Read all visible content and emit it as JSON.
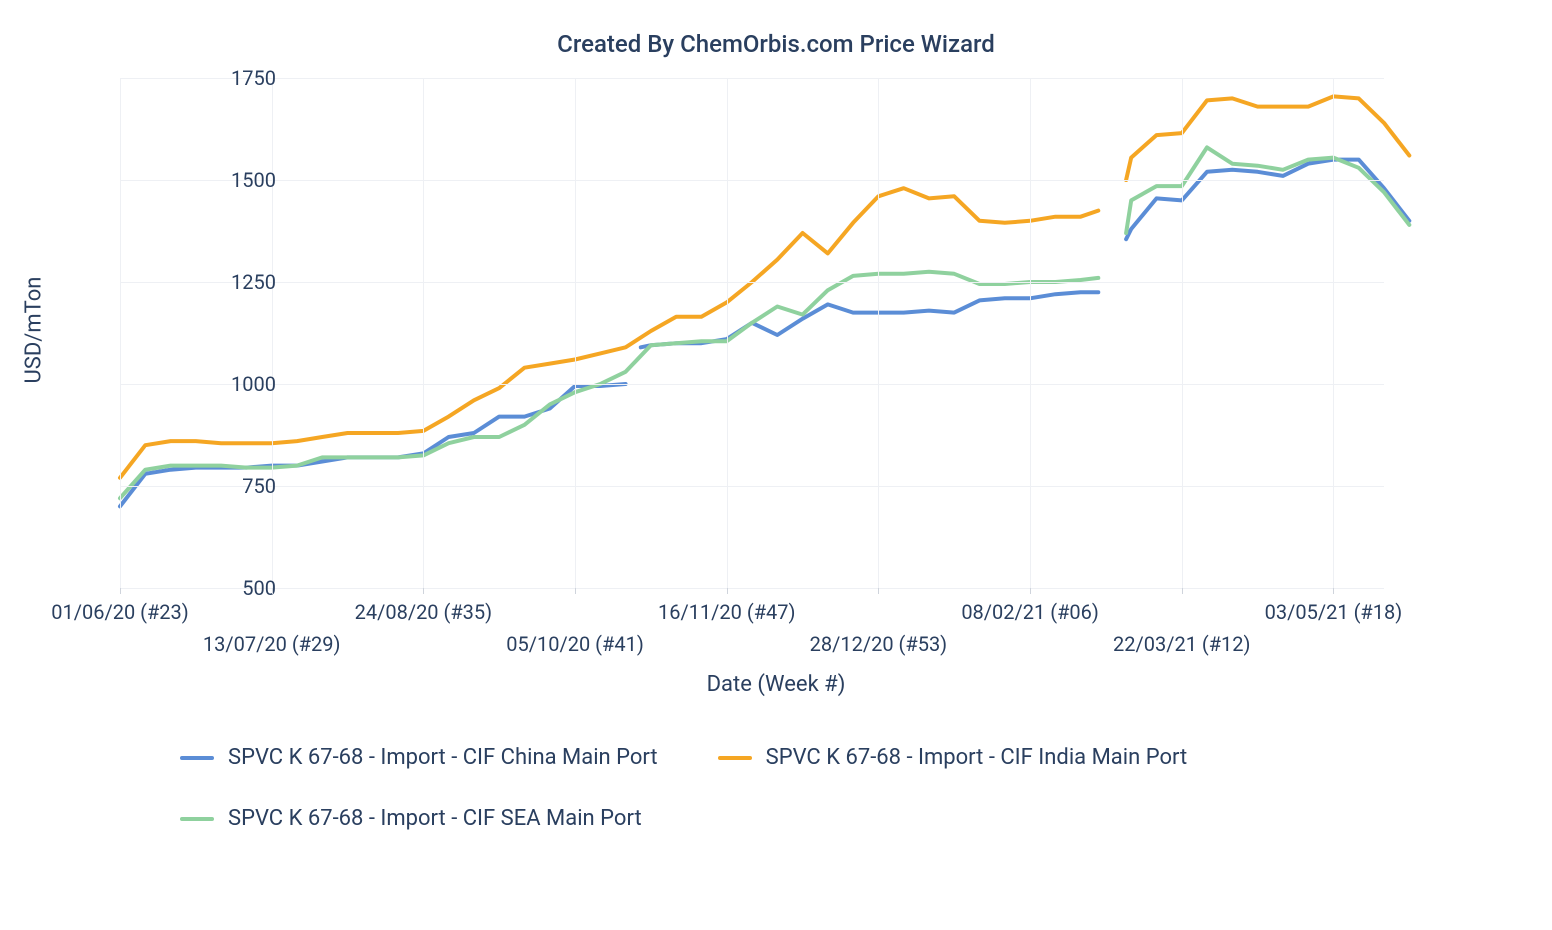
{
  "chart": {
    "type": "line",
    "title": "Created By ChemOrbis.com Price Wizard",
    "title_fontsize": 24,
    "background_color": "#ffffff",
    "grid_color": "#eef0f4",
    "text_color": "#2a3f5f",
    "y_axis": {
      "label": "USD/mTon",
      "min": 500,
      "max": 1750,
      "tick_step": 250,
      "ticks": [
        500,
        750,
        1000,
        1250,
        1500,
        1750
      ],
      "label_fontsize": 22,
      "tick_fontsize": 20
    },
    "x_axis": {
      "label": "Date (Week #)",
      "index_min": 0,
      "index_max": 50,
      "ticks": [
        {
          "i": 0,
          "label": "01/06/20 (#23)",
          "row": 0
        },
        {
          "i": 6,
          "label": "13/07/20 (#29)",
          "row": 1
        },
        {
          "i": 12,
          "label": "24/08/20 (#35)",
          "row": 0
        },
        {
          "i": 18,
          "label": "05/10/20 (#41)",
          "row": 1
        },
        {
          "i": 24,
          "label": "16/11/20 (#47)",
          "row": 0
        },
        {
          "i": 30,
          "label": "28/12/20 (#53)",
          "row": 1
        },
        {
          "i": 36,
          "label": "08/02/21 (#06)",
          "row": 0
        },
        {
          "i": 42,
          "label": "22/03/21 (#12)",
          "row": 1
        },
        {
          "i": 48,
          "label": "03/05/21 (#18)",
          "row": 0
        }
      ],
      "label_fontsize": 22,
      "tick_fontsize": 20
    },
    "legend": {
      "position": "bottom",
      "fontsize": 22
    },
    "line_width": 4,
    "series": [
      {
        "name": "SPVC K 67-68 - Import - CIF China Main Port",
        "color": "#5b8dd6",
        "segments": [
          [
            [
              0,
              700
            ],
            [
              1,
              780
            ],
            [
              2,
              790
            ],
            [
              3,
              795
            ],
            [
              4,
              795
            ],
            [
              5,
              795
            ],
            [
              6,
              800
            ],
            [
              7,
              800
            ],
            [
              8,
              810
            ],
            [
              9,
              820
            ],
            [
              10,
              820
            ],
            [
              11,
              820
            ],
            [
              12,
              830
            ],
            [
              13,
              870
            ],
            [
              14,
              880
            ],
            [
              15,
              920
            ],
            [
              16,
              920
            ],
            [
              17,
              940
            ],
            [
              18,
              995
            ],
            [
              19,
              995
            ],
            [
              20,
              1000
            ]
          ],
          [
            [
              20.6,
              1090
            ],
            [
              21,
              1095
            ],
            [
              22,
              1100
            ],
            [
              23,
              1100
            ],
            [
              24,
              1110
            ],
            [
              25,
              1150
            ],
            [
              26,
              1120
            ],
            [
              27,
              1160
            ],
            [
              28,
              1195
            ],
            [
              29,
              1175
            ],
            [
              30,
              1175
            ],
            [
              31,
              1175
            ],
            [
              32,
              1180
            ],
            [
              33,
              1175
            ],
            [
              34,
              1205
            ],
            [
              35,
              1210
            ],
            [
              36,
              1210
            ],
            [
              37,
              1220
            ],
            [
              38,
              1225
            ],
            [
              38.7,
              1225
            ]
          ],
          [
            [
              39.8,
              1355
            ],
            [
              40,
              1380
            ],
            [
              41,
              1455
            ],
            [
              42,
              1450
            ],
            [
              43,
              1520
            ],
            [
              44,
              1525
            ],
            [
              45,
              1520
            ],
            [
              46,
              1510
            ],
            [
              47,
              1540
            ],
            [
              48,
              1550
            ],
            [
              49,
              1550
            ],
            [
              50,
              1480
            ],
            [
              51,
              1400
            ]
          ]
        ]
      },
      {
        "name": "SPVC K 67-68 - Import - CIF India Main Port",
        "color": "#f5a623",
        "segments": [
          [
            [
              0,
              770
            ],
            [
              1,
              850
            ],
            [
              2,
              860
            ],
            [
              3,
              860
            ],
            [
              4,
              855
            ],
            [
              5,
              855
            ],
            [
              6,
              855
            ],
            [
              7,
              860
            ],
            [
              8,
              870
            ],
            [
              9,
              880
            ],
            [
              10,
              880
            ],
            [
              11,
              880
            ],
            [
              12,
              885
            ],
            [
              13,
              920
            ],
            [
              14,
              960
            ],
            [
              15,
              990
            ],
            [
              16,
              1040
            ],
            [
              17,
              1050
            ],
            [
              18,
              1060
            ],
            [
              19,
              1075
            ],
            [
              20,
              1090
            ],
            [
              21,
              1130
            ],
            [
              22,
              1165
            ],
            [
              23,
              1165
            ],
            [
              24,
              1200
            ],
            [
              25,
              1250
            ],
            [
              26,
              1305
            ],
            [
              27,
              1370
            ],
            [
              28,
              1320
            ],
            [
              29,
              1395
            ],
            [
              30,
              1460
            ],
            [
              31,
              1480
            ],
            [
              32,
              1455
            ],
            [
              33,
              1460
            ],
            [
              34,
              1400
            ],
            [
              35,
              1395
            ],
            [
              36,
              1400
            ],
            [
              37,
              1410
            ],
            [
              38,
              1410
            ],
            [
              38.7,
              1425
            ]
          ],
          [
            [
              39.8,
              1500
            ],
            [
              40,
              1555
            ],
            [
              41,
              1610
            ],
            [
              42,
              1615
            ],
            [
              43,
              1695
            ],
            [
              44,
              1700
            ],
            [
              45,
              1680
            ],
            [
              46,
              1680
            ],
            [
              47,
              1680
            ],
            [
              48,
              1705
            ],
            [
              49,
              1700
            ],
            [
              50,
              1640
            ],
            [
              51,
              1560
            ]
          ]
        ]
      },
      {
        "name": "SPVC K 67-68 - Import - CIF SEA Main Port",
        "color": "#8fd19e",
        "segments": [
          [
            [
              0,
              720
            ],
            [
              1,
              790
            ],
            [
              2,
              800
            ],
            [
              3,
              800
            ],
            [
              4,
              800
            ],
            [
              5,
              795
            ],
            [
              6,
              795
            ],
            [
              7,
              800
            ],
            [
              8,
              820
            ],
            [
              9,
              820
            ],
            [
              10,
              820
            ],
            [
              11,
              820
            ],
            [
              12,
              825
            ],
            [
              13,
              855
            ],
            [
              14,
              870
            ],
            [
              15,
              870
            ],
            [
              16,
              900
            ],
            [
              17,
              950
            ],
            [
              18,
              980
            ],
            [
              19,
              1000
            ],
            [
              20,
              1030
            ],
            [
              21,
              1095
            ],
            [
              22,
              1100
            ],
            [
              23,
              1105
            ],
            [
              24,
              1105
            ],
            [
              25,
              1150
            ],
            [
              26,
              1190
            ],
            [
              27,
              1170
            ],
            [
              28,
              1230
            ],
            [
              29,
              1265
            ],
            [
              30,
              1270
            ],
            [
              31,
              1270
            ],
            [
              32,
              1275
            ],
            [
              33,
              1270
            ],
            [
              34,
              1245
            ],
            [
              35,
              1245
            ],
            [
              36,
              1250
            ],
            [
              37,
              1250
            ],
            [
              38,
              1255
            ],
            [
              38.7,
              1260
            ]
          ],
          [
            [
              39.8,
              1370
            ],
            [
              40,
              1450
            ],
            [
              41,
              1485
            ],
            [
              42,
              1485
            ],
            [
              43,
              1580
            ],
            [
              44,
              1540
            ],
            [
              45,
              1535
            ],
            [
              46,
              1525
            ],
            [
              47,
              1550
            ],
            [
              48,
              1555
            ],
            [
              49,
              1530
            ],
            [
              50,
              1470
            ],
            [
              51,
              1390
            ]
          ]
        ]
      }
    ]
  }
}
